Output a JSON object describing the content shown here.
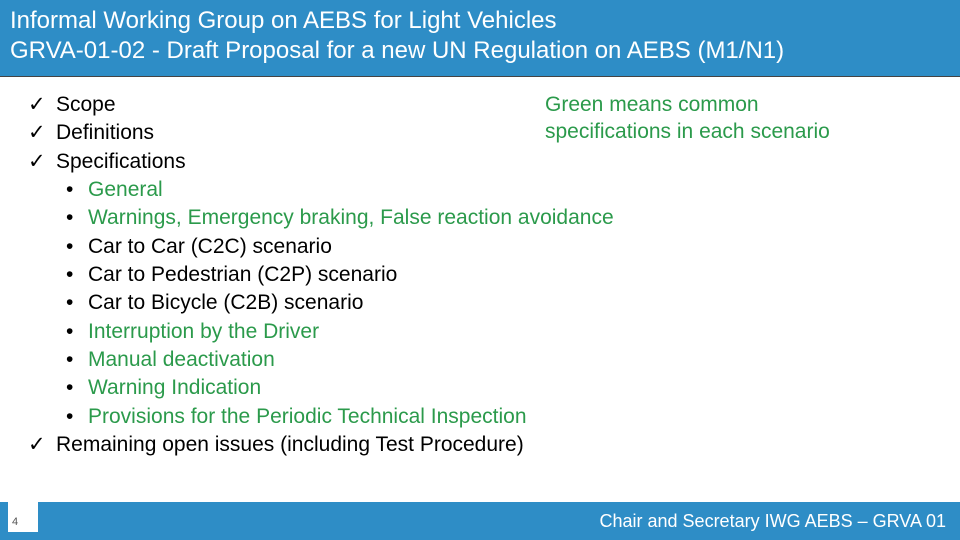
{
  "title": {
    "line1": "Informal Working Group on AEBS for Light Vehicles",
    "line2": "GRVA-01-02 - Draft Proposal for a new UN Regulation on AEBS (M1/N1)"
  },
  "note": {
    "line1": "Green means common",
    "line2": "specifications in each scenario"
  },
  "checks": {
    "scope": "Scope",
    "definitions": "Definitions",
    "specifications": "Specifications",
    "remaining": "Remaining open issues (including Test Procedure)"
  },
  "subs": {
    "general": "General",
    "warnings": "Warnings, Emergency braking, False reaction avoidance",
    "c2c": "Car to Car (C2C) scenario",
    "c2p": "Car to Pedestrian (C2P) scenario",
    "c2b": "Car to Bicycle (C2B) scenario",
    "interruption": "Interruption by the Driver",
    "manual": "Manual deactivation",
    "warning_ind": "Warning Indication",
    "pti": "Provisions for the Periodic Technical Inspection"
  },
  "footer": {
    "page": "4",
    "text": "Chair and Secretary IWG AEBS – GRVA 01"
  },
  "colors": {
    "bar": "#2e8dc6",
    "green": "#2b9a4b"
  }
}
